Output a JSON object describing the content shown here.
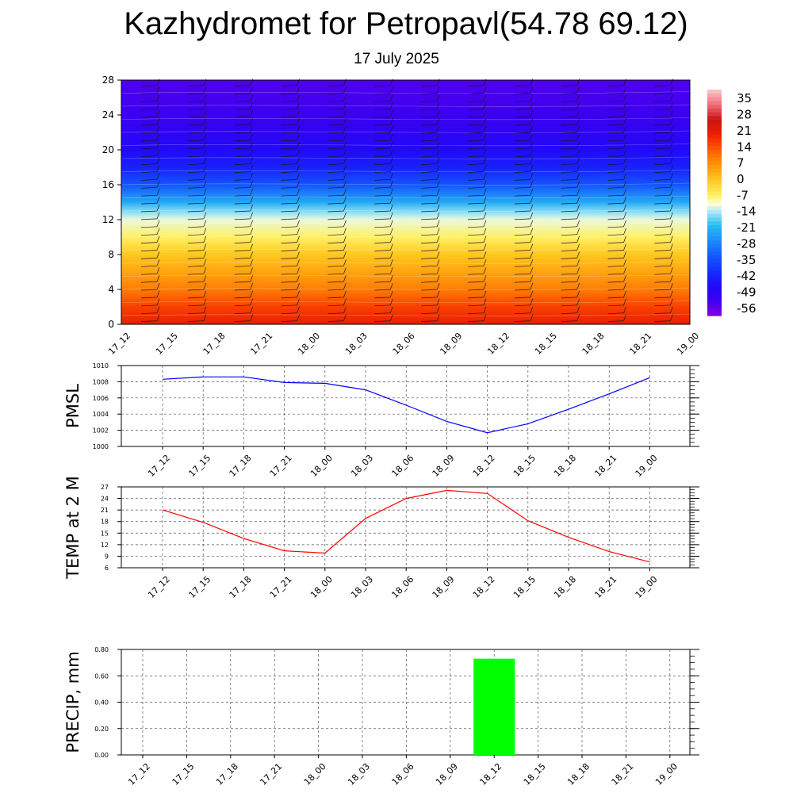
{
  "header": {
    "title": "Kazhydromet for Petropavl(54.78 69.12)",
    "subtitle": "17 July 2025"
  },
  "time_labels": [
    "17_12",
    "17_15",
    "17_18",
    "17_21",
    "18_00",
    "18_03",
    "18_06",
    "18_09",
    "18_12",
    "18_15",
    "18_18",
    "18_21",
    "19_00"
  ],
  "colors": {
    "pmsl_line": "#0000ff",
    "temp_line": "#ff0000",
    "precip_bar": "#00ff00",
    "grid": "#000000"
  },
  "chart_data": [
    {
      "type": "heatmap",
      "title": "",
      "xlabel": "",
      "ylabel": "",
      "ylim": [
        0,
        28
      ],
      "yticks": [
        0,
        4,
        8,
        12,
        16,
        20,
        24,
        28
      ],
      "colorbar": {
        "labels": [
          "35",
          "28",
          "21",
          "14",
          "7",
          "0",
          "-7",
          "-14",
          "-21",
          "-28",
          "-35",
          "-42",
          "-49",
          "-56"
        ],
        "range": [
          -63,
          42
        ]
      },
      "height_temperature_profile": [
        {
          "height": 0,
          "temp": 22
        },
        {
          "height": 2,
          "temp": 17
        },
        {
          "height": 4,
          "temp": 10
        },
        {
          "height": 6,
          "temp": 5
        },
        {
          "height": 8,
          "temp": 0
        },
        {
          "height": 10,
          "temp": -7
        },
        {
          "height": 12,
          "temp": -12
        },
        {
          "height": 13,
          "temp": -17
        },
        {
          "height": 14,
          "temp": -24
        },
        {
          "height": 16,
          "temp": -36
        },
        {
          "height": 18,
          "temp": -45
        },
        {
          "height": 20,
          "temp": -50
        },
        {
          "height": 22,
          "temp": -53
        },
        {
          "height": 24,
          "temp": -56
        },
        {
          "height": 28,
          "temp": -58
        }
      ],
      "wind_barbs": true
    },
    {
      "type": "line",
      "title": "",
      "xlabel": "",
      "ylabel": "PMSL",
      "categories": [
        "17_12",
        "17_15",
        "17_18",
        "17_21",
        "18_00",
        "18_03",
        "18_06",
        "18_09",
        "18_12",
        "18_15",
        "18_18",
        "18_21",
        "19_00"
      ],
      "ylim": [
        1000,
        1010
      ],
      "yticks": [
        1000,
        1002,
        1004,
        1006,
        1008,
        1010
      ],
      "grid": true,
      "series": [
        {
          "values": [
            1008.3,
            1008.6,
            1008.6,
            1007.9,
            1007.8,
            1007.0,
            1005.1,
            1003.1,
            1001.7,
            1002.8,
            1004.6,
            1006.5,
            1008.5
          ]
        }
      ]
    },
    {
      "type": "line",
      "title": "",
      "xlabel": "",
      "ylabel": "TEMP at 2 M",
      "categories": [
        "17_12",
        "17_15",
        "17_18",
        "17_21",
        "18_00",
        "18_03",
        "18_06",
        "18_09",
        "18_12",
        "18_15",
        "18_18",
        "18_21",
        "19_00"
      ],
      "ylim": [
        6,
        27
      ],
      "yticks": [
        6,
        9,
        12,
        15,
        18,
        21,
        24,
        27
      ],
      "grid": true,
      "series": [
        {
          "values": [
            21.0,
            17.8,
            13.6,
            10.4,
            9.8,
            18.8,
            24.0,
            26.1,
            25.3,
            18.2,
            13.9,
            10.2,
            7.5
          ]
        }
      ]
    },
    {
      "type": "bar",
      "title": "",
      "xlabel": "",
      "ylabel": "PRECIP, mm",
      "categories": [
        "17_12",
        "17_15",
        "17_18",
        "17_21",
        "18_00",
        "18_03",
        "18_06",
        "18_09",
        "18_12",
        "18_15",
        "18_18",
        "18_21",
        "19_00"
      ],
      "ylim": [
        0,
        0.8
      ],
      "yticks": [
        "0.00",
        "0.20",
        "0.40",
        "0.60",
        "0.80"
      ],
      "grid": true,
      "series": [
        {
          "values": [
            0,
            0,
            0,
            0,
            0,
            0,
            0,
            0,
            0.73,
            0,
            0,
            0,
            0
          ]
        }
      ]
    }
  ]
}
